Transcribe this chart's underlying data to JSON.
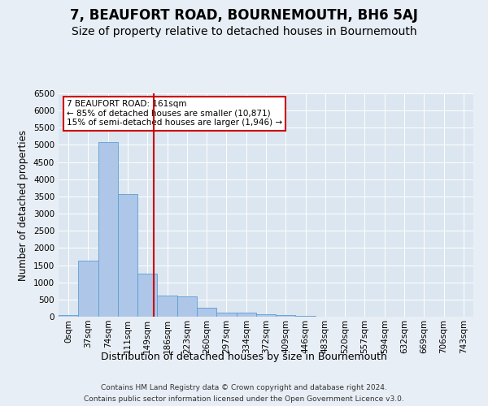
{
  "title": "7, BEAUFORT ROAD, BOURNEMOUTH, BH6 5AJ",
  "subtitle": "Size of property relative to detached houses in Bournemouth",
  "xlabel": "Distribution of detached houses by size in Bournemouth",
  "ylabel": "Number of detached properties",
  "footnote1": "Contains HM Land Registry data © Crown copyright and database right 2024.",
  "footnote2": "Contains public sector information licensed under the Open Government Licence v3.0.",
  "categories": [
    "0sqm",
    "37sqm",
    "74sqm",
    "111sqm",
    "149sqm",
    "186sqm",
    "223sqm",
    "260sqm",
    "297sqm",
    "334sqm",
    "372sqm",
    "409sqm",
    "446sqm",
    "483sqm",
    "520sqm",
    "557sqm",
    "594sqm",
    "632sqm",
    "669sqm",
    "706sqm",
    "743sqm"
  ],
  "values": [
    50,
    1620,
    5090,
    3570,
    1250,
    620,
    580,
    270,
    130,
    110,
    80,
    55,
    30,
    8,
    4,
    2,
    1,
    1,
    0,
    0,
    0
  ],
  "bar_color": "#aec6e8",
  "bar_edge_color": "#5a9fd4",
  "property_label": "7 BEAUFORT ROAD: 161sqm",
  "annotation_line1": "← 85% of detached houses are smaller (10,871)",
  "annotation_line2": "15% of semi-detached houses are larger (1,946) →",
  "vline_color": "#cc0000",
  "annotation_box_color": "#cc0000",
  "vline_x_index": 4.324,
  "ylim": [
    0,
    6500
  ],
  "yticks": [
    0,
    500,
    1000,
    1500,
    2000,
    2500,
    3000,
    3500,
    4000,
    4500,
    5000,
    5500,
    6000,
    6500
  ],
  "bg_color": "#e8eef5",
  "plot_bg_color": "#dce6f0",
  "title_fontsize": 12,
  "subtitle_fontsize": 10,
  "tick_fontsize": 7.5,
  "ylabel_fontsize": 8.5,
  "xlabel_fontsize": 9,
  "annotation_fontsize": 7.5,
  "footnote_fontsize": 6.5
}
